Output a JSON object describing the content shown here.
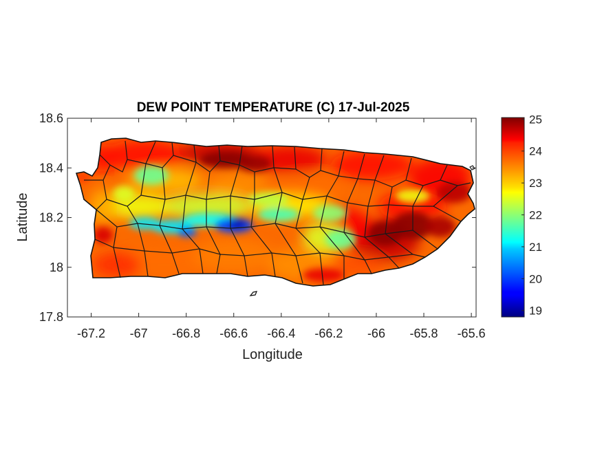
{
  "chart_data": {
    "type": "heatmap",
    "title": "DEW POINT TEMPERATURE (C) 17-Jul-2025",
    "xlabel": "Longitude",
    "ylabel": "Latitude",
    "xlim": [
      -67.3,
      -65.58
    ],
    "ylim": [
      17.8,
      18.6
    ],
    "x_ticks": [
      -67.2,
      -67,
      -66.8,
      -66.6,
      -66.4,
      -66.2,
      -66,
      -65.8,
      -65.6
    ],
    "x_tick_labels": [
      "-67.2",
      "-67",
      "-66.8",
      "-66.6",
      "-66.4",
      "-66.2",
      "-66",
      "-65.8",
      "-65.6"
    ],
    "y_ticks": [
      17.8,
      18,
      18.2,
      18.4,
      18.6
    ],
    "y_tick_labels": [
      "17.8",
      "18",
      "18.2",
      "18.4",
      "18.6"
    ],
    "colorbar": {
      "min": 18.8,
      "max": 25.05,
      "ticks": [
        19,
        20,
        21,
        22,
        23,
        24,
        25
      ],
      "tick_labels": [
        "19",
        "20",
        "21",
        "22",
        "23",
        "24",
        "25"
      ],
      "colormap": "jet"
    },
    "grid": false
  }
}
